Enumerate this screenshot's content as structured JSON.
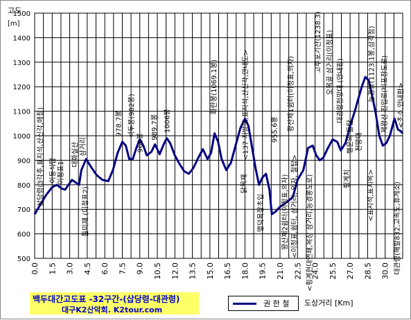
{
  "chart_data": {
    "type": "line",
    "y_unit_top": "고도",
    "y_unit_bottom": "[m]",
    "xlabel": "도상거리 [Km]",
    "ylim": [
      500,
      1500
    ],
    "xlim": [
      0,
      31.5
    ],
    "y_ticks": [
      500,
      600,
      700,
      800,
      900,
      1000,
      1100,
      1200,
      1300,
      1400,
      1500
    ],
    "x_ticks": [
      "0.0",
      "1.5",
      "3.0",
      "4.5",
      "6.0",
      "7.5",
      "9.0",
      "10.5",
      "12.0",
      "13.5",
      "15.0",
      "16.5",
      "18.0",
      "19.5",
      "21.0",
      "22.5",
      "24.0",
      "25.5",
      "27.0",
      "28.5",
      "30.0"
    ],
    "grid": true,
    "legend_position": "bottom",
    "series": [
      {
        "name": "권 한 철",
        "color": "#000080",
        "points": [
          [
            0.0,
            680
          ],
          [
            0.5,
            720
          ],
          [
            1.0,
            760
          ],
          [
            1.5,
            790
          ],
          [
            1.9,
            800
          ],
          [
            2.3,
            785
          ],
          [
            2.6,
            780
          ],
          [
            2.9,
            800
          ],
          [
            3.2,
            820
          ],
          [
            3.5,
            810
          ],
          [
            3.8,
            800
          ],
          [
            4.0,
            860
          ],
          [
            4.4,
            905
          ],
          [
            4.8,
            875
          ],
          [
            5.3,
            840
          ],
          [
            5.8,
            820
          ],
          [
            6.3,
            815
          ],
          [
            6.7,
            860
          ],
          [
            7.1,
            930
          ],
          [
            7.5,
            975
          ],
          [
            7.8,
            960
          ],
          [
            8.1,
            905
          ],
          [
            8.4,
            905
          ],
          [
            8.7,
            950
          ],
          [
            9.0,
            985
          ],
          [
            9.3,
            960
          ],
          [
            9.6,
            920
          ],
          [
            10.0,
            935
          ],
          [
            10.3,
            965
          ],
          [
            10.7,
            925
          ],
          [
            11.0,
            960
          ],
          [
            11.3,
            990
          ],
          [
            11.6,
            970
          ],
          [
            12.0,
            920
          ],
          [
            12.4,
            885
          ],
          [
            12.8,
            855
          ],
          [
            13.2,
            845
          ],
          [
            13.6,
            870
          ],
          [
            14.0,
            910
          ],
          [
            14.4,
            945
          ],
          [
            14.8,
            905
          ],
          [
            15.1,
            930
          ],
          [
            15.4,
            1010
          ],
          [
            15.7,
            975
          ],
          [
            16.0,
            905
          ],
          [
            16.4,
            860
          ],
          [
            16.8,
            890
          ],
          [
            17.2,
            960
          ],
          [
            17.6,
            1030
          ],
          [
            18.0,
            1070
          ],
          [
            18.3,
            1040
          ],
          [
            18.6,
            955
          ],
          [
            18.9,
            870
          ],
          [
            19.2,
            800
          ],
          [
            19.5,
            830
          ],
          [
            19.8,
            845
          ],
          [
            20.1,
            780
          ],
          [
            20.3,
            680
          ],
          [
            20.6,
            690
          ],
          [
            21.0,
            710
          ],
          [
            21.6,
            730
          ],
          [
            22.1,
            750
          ],
          [
            22.5,
            820
          ],
          [
            23.0,
            860
          ],
          [
            23.4,
            950
          ],
          [
            23.8,
            960
          ],
          [
            24.1,
            920
          ],
          [
            24.4,
            900
          ],
          [
            24.7,
            910
          ],
          [
            25.1,
            950
          ],
          [
            25.5,
            985
          ],
          [
            25.9,
            975
          ],
          [
            26.2,
            940
          ],
          [
            26.6,
            970
          ],
          [
            27.0,
            1040
          ],
          [
            27.4,
            1100
          ],
          [
            27.7,
            1150
          ],
          [
            28.0,
            1200
          ],
          [
            28.3,
            1240
          ],
          [
            28.6,
            1225
          ],
          [
            28.9,
            1160
          ],
          [
            29.2,
            1090
          ],
          [
            29.5,
            1000
          ],
          [
            29.8,
            960
          ],
          [
            30.1,
            970
          ],
          [
            30.4,
            1000
          ],
          [
            30.8,
            1070
          ],
          [
            31.1,
            1025
          ],
          [
            31.3,
            1020
          ],
          [
            31.5,
            1010
          ]
        ]
      }
    ],
    "annotations": [
      "삼당령(3각추,표지석,산신각,매점)",
      "이동식탑",
      "이정표1",
      "대화실산",
      "삼거리",
      "들미재 (이정표2)",
      "978.7봉",
      "석두봉(982봉)",
      "960봉",
      "989.7봉",
      "1006봉",
      "화란봉(1069.1봉)",
      "닭목재",
      "<137 지방도,표지석,산신각,안내도>",
      "맹덕목장초입",
      "955.6봉",
      "왕산제1쉼터(이정표,의자)",
      "왕산제2쉼터(이정표,의자)",
      "<이정표,쉼터, 삼거리, 의자, 철탑>",
      "고루포기산(1238.3)",
      "오목골 삼거리(이정표)",
      "대관령전망대 (안내판)",
      "<횡계현대연쇄,목장 삼거리,능경봉도로)",
      "행운의 돌탑",
      "횡계치",
      "전망대",
      "능경봉(1123.1봉,삼각점)",
      "<표지석,표지목>",
      "제왕산 진입로(비포장도로)",
      "대관령(해발832,고속도,휴게소)",
      "<초소,안내판>"
    ],
    "title": "백두대간고도표 -32구간-(삽당령-대관령)",
    "subtitle": "대구K2산악회. K2tour.com"
  }
}
